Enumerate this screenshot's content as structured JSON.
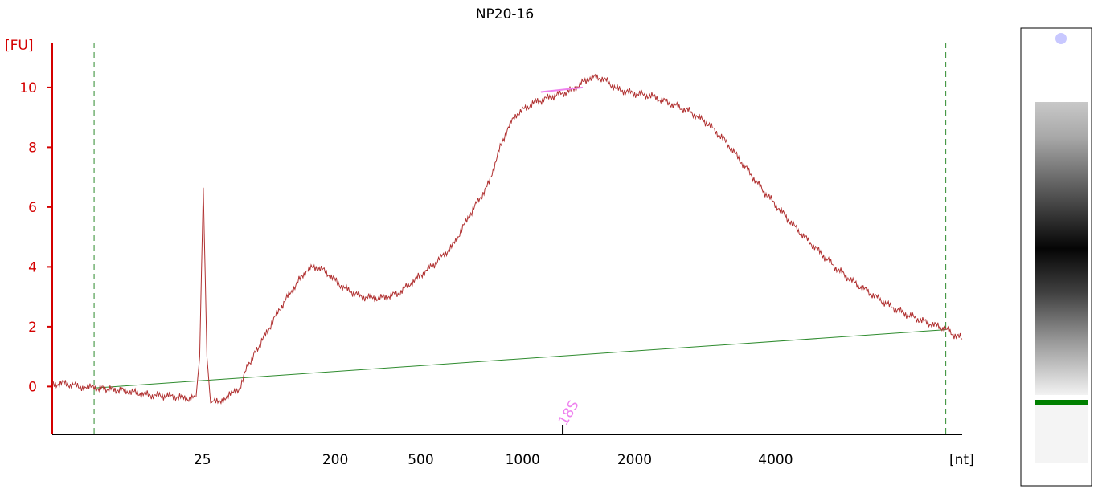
{
  "chart_data": {
    "type": "line",
    "title": "NP20-16",
    "ylabel": "[FU]",
    "xlabel": "[nt]",
    "ylim": [
      -1.6,
      11.5
    ],
    "y_ticks": [
      "0",
      "2",
      "4",
      "6",
      "8",
      "10"
    ],
    "x_ticks": [
      {
        "label": "25",
        "t": 0.165
      },
      {
        "label": "200",
        "t": 0.311
      },
      {
        "label": "500",
        "t": 0.405
      },
      {
        "label": "1000",
        "t": 0.517
      },
      {
        "label": "2000",
        "t": 0.64
      },
      {
        "label": "4000",
        "t": 0.795
      }
    ],
    "marker_lines_t": [
      0.046,
      0.982
    ],
    "trace": {
      "color": "#b03030",
      "points_t_fu": [
        [
          0.0,
          0.05
        ],
        [
          0.01,
          0.12
        ],
        [
          0.03,
          0.0
        ],
        [
          0.046,
          -0.05
        ],
        [
          0.07,
          -0.1
        ],
        [
          0.09,
          -0.2
        ],
        [
          0.11,
          -0.3
        ],
        [
          0.13,
          -0.32
        ],
        [
          0.15,
          -0.4
        ],
        [
          0.158,
          -0.35
        ],
        [
          0.162,
          1.0
        ],
        [
          0.166,
          6.65
        ],
        [
          0.17,
          1.0
        ],
        [
          0.174,
          -0.55
        ],
        [
          0.19,
          -0.4
        ],
        [
          0.205,
          -0.1
        ],
        [
          0.215,
          0.7
        ],
        [
          0.23,
          1.5
        ],
        [
          0.25,
          2.6
        ],
        [
          0.27,
          3.5
        ],
        [
          0.28,
          3.9
        ],
        [
          0.29,
          4.0
        ],
        [
          0.3,
          3.85
        ],
        [
          0.32,
          3.3
        ],
        [
          0.34,
          3.0
        ],
        [
          0.36,
          2.95
        ],
        [
          0.38,
          3.1
        ],
        [
          0.4,
          3.6
        ],
        [
          0.42,
          4.1
        ],
        [
          0.44,
          4.7
        ],
        [
          0.46,
          5.8
        ],
        [
          0.48,
          6.8
        ],
        [
          0.49,
          7.8
        ],
        [
          0.5,
          8.6
        ],
        [
          0.51,
          9.1
        ],
        [
          0.52,
          9.3
        ],
        [
          0.53,
          9.5
        ],
        [
          0.54,
          9.6
        ],
        [
          0.55,
          9.7
        ],
        [
          0.56,
          9.8
        ],
        [
          0.57,
          9.9
        ],
        [
          0.58,
          10.1
        ],
        [
          0.59,
          10.3
        ],
        [
          0.6,
          10.35
        ],
        [
          0.61,
          10.2
        ],
        [
          0.62,
          9.95
        ],
        [
          0.64,
          9.8
        ],
        [
          0.66,
          9.7
        ],
        [
          0.68,
          9.45
        ],
        [
          0.7,
          9.2
        ],
        [
          0.72,
          8.8
        ],
        [
          0.74,
          8.2
        ],
        [
          0.76,
          7.4
        ],
        [
          0.78,
          6.6
        ],
        [
          0.8,
          5.9
        ],
        [
          0.82,
          5.2
        ],
        [
          0.84,
          4.6
        ],
        [
          0.86,
          4.0
        ],
        [
          0.88,
          3.5
        ],
        [
          0.9,
          3.1
        ],
        [
          0.92,
          2.7
        ],
        [
          0.94,
          2.4
        ],
        [
          0.96,
          2.15
        ],
        [
          0.98,
          1.95
        ],
        [
          0.99,
          1.75
        ],
        [
          1.0,
          1.6
        ]
      ]
    },
    "baseline": {
      "color": "#2e8b2e",
      "from_t_fu": [
        0.046,
        -0.05
      ],
      "to_t_fu": [
        0.982,
        1.9
      ]
    },
    "peak_marker": {
      "label": "18S",
      "t": 0.561,
      "color": "#ee82ee",
      "bar_from_t_fu": [
        0.537,
        9.85
      ],
      "bar_to_t_fu": [
        0.583,
        10.0
      ]
    },
    "gel_lane": {
      "upper_marker_color": "#c8c8ff",
      "lower_marker_color": "#008000"
    }
  }
}
